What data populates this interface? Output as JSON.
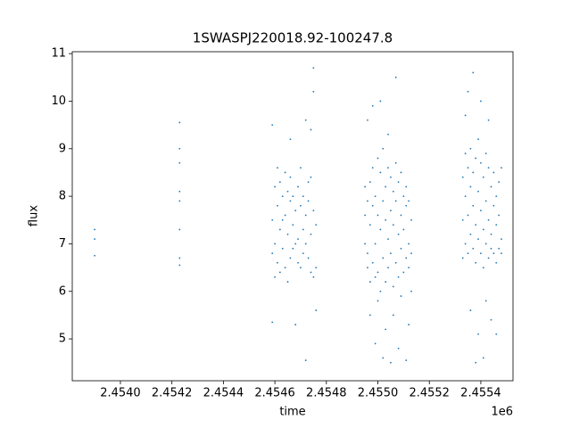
{
  "chart_data": {
    "type": "scatter",
    "title": "1SWASPJ220018.92-100247.8",
    "x_label": "time",
    "y_label": "flux",
    "x_offset_label": "1e6",
    "xlim": [
      2.453813,
      2.455525
    ],
    "ylim": [
      4.12,
      11.04
    ],
    "xticks": [
      {
        "value": 2.454,
        "label": "2.4540"
      },
      2.4542,
      2.4544,
      2.4546,
      2.4548,
      {
        "value": 2.455,
        "label": "2.4550"
      },
      2.4552,
      2.4554
    ],
    "yticks": [
      5,
      6,
      7,
      8,
      9,
      10,
      11
    ],
    "series": [
      {
        "color": "#1f77b4",
        "x": [
          2.4539,
          2.4539,
          2.4539,
          2.45423,
          2.45423,
          2.45423,
          2.45423,
          2.45423,
          2.45423,
          2.45423,
          2.45423,
          2.45459,
          2.45459,
          2.45459,
          2.45459,
          2.4546,
          2.4546,
          2.4546,
          2.45461,
          2.45461,
          2.45461,
          2.45462,
          2.45462,
          2.45462,
          2.45463,
          2.45463,
          2.45463,
          2.45464,
          2.45464,
          2.45464,
          2.45465,
          2.45465,
          2.45465,
          2.45466,
          2.45466,
          2.45466,
          2.45466,
          2.45467,
          2.45467,
          2.45467,
          2.45468,
          2.45468,
          2.45468,
          2.45469,
          2.45469,
          2.45469,
          2.4547,
          2.4547,
          2.4547,
          2.45471,
          2.45471,
          2.45471,
          2.45472,
          2.45472,
          2.45472,
          2.45472,
          2.45473,
          2.45473,
          2.45473,
          2.45474,
          2.45474,
          2.45474,
          2.45474,
          2.45475,
          2.45475,
          2.45475,
          2.45475,
          2.45476,
          2.45476,
          2.45476,
          2.45495,
          2.45495,
          2.45495,
          2.45496,
          2.45496,
          2.45496,
          2.45496,
          2.45497,
          2.45497,
          2.45497,
          2.45497,
          2.45498,
          2.45498,
          2.45498,
          2.45498,
          2.45499,
          2.45499,
          2.45499,
          2.45499,
          2.455,
          2.455,
          2.455,
          2.455,
          2.45501,
          2.45501,
          2.45501,
          2.45501,
          2.45502,
          2.45502,
          2.45502,
          2.45502,
          2.45503,
          2.45503,
          2.45503,
          2.45503,
          2.45504,
          2.45504,
          2.45504,
          2.45504,
          2.45505,
          2.45505,
          2.45505,
          2.45505,
          2.45506,
          2.45506,
          2.45506,
          2.45506,
          2.45507,
          2.45507,
          2.45507,
          2.45507,
          2.45508,
          2.45508,
          2.45508,
          2.45508,
          2.45509,
          2.45509,
          2.45509,
          2.45509,
          2.4551,
          2.4551,
          2.4551,
          2.45511,
          2.45511,
          2.45511,
          2.45511,
          2.45512,
          2.45512,
          2.45512,
          2.45512,
          2.45513,
          2.45513,
          2.45513,
          2.45533,
          2.45533,
          2.45533,
          2.45534,
          2.45534,
          2.45534,
          2.45534,
          2.45535,
          2.45535,
          2.45535,
          2.45535,
          2.45536,
          2.45536,
          2.45536,
          2.45536,
          2.45537,
          2.45537,
          2.45537,
          2.45537,
          2.45538,
          2.45538,
          2.45538,
          2.45538,
          2.45539,
          2.45539,
          2.45539,
          2.45539,
          2.4554,
          2.4554,
          2.4554,
          2.4554,
          2.45541,
          2.45541,
          2.45541,
          2.45541,
          2.45542,
          2.45542,
          2.45542,
          2.45542,
          2.45543,
          2.45543,
          2.45543,
          2.45543,
          2.45544,
          2.45544,
          2.45544,
          2.45544,
          2.45545,
          2.45545,
          2.45545,
          2.45546,
          2.45546,
          2.45546,
          2.45546,
          2.45547,
          2.45547,
          2.45547,
          2.45548,
          2.45548,
          2.45548
        ],
        "values": [
          6.75,
          7.1,
          7.3,
          6.55,
          6.7,
          7.3,
          7.9,
          8.1,
          8.7,
          9.0,
          9.55,
          7.5,
          6.8,
          9.5,
          5.35,
          7.0,
          8.2,
          6.3,
          7.8,
          6.6,
          8.6,
          7.3,
          6.4,
          8.3,
          8.0,
          6.9,
          7.5,
          7.6,
          6.5,
          8.5,
          7.2,
          8.1,
          6.2,
          7.9,
          6.7,
          8.4,
          9.2,
          7.4,
          6.9,
          8.0,
          7.7,
          7.0,
          5.3,
          7.1,
          8.2,
          6.6,
          7.8,
          6.5,
          8.6,
          7.3,
          8.0,
          6.8,
          7.6,
          7.0,
          4.55,
          9.6,
          7.9,
          6.7,
          8.3,
          7.2,
          8.4,
          6.4,
          9.4,
          7.7,
          10.7,
          10.2,
          6.3,
          7.4,
          6.5,
          5.6,
          8.2,
          7.6,
          7.0,
          6.8,
          7.9,
          6.5,
          9.6,
          7.4,
          8.3,
          6.2,
          5.5,
          7.8,
          6.6,
          8.6,
          9.9,
          7.0,
          8.0,
          6.3,
          4.9,
          7.6,
          8.8,
          6.4,
          5.8,
          7.3,
          8.5,
          6.0,
          10.0,
          7.9,
          6.7,
          9.0,
          4.6,
          7.5,
          8.2,
          6.2,
          5.2,
          7.1,
          8.6,
          6.5,
          9.3,
          7.7,
          6.8,
          8.4,
          4.5,
          7.4,
          8.1,
          6.1,
          5.5,
          7.9,
          6.6,
          8.7,
          10.5,
          7.2,
          8.3,
          6.3,
          4.8,
          7.6,
          6.9,
          8.5,
          5.9,
          7.3,
          8.0,
          6.4,
          7.8,
          6.7,
          8.2,
          4.55,
          7.0,
          7.9,
          6.5,
          5.3,
          7.5,
          6.8,
          6.0,
          7.5,
          8.4,
          6.7,
          8.0,
          7.0,
          8.9,
          9.7,
          7.6,
          8.6,
          6.8,
          10.2,
          8.2,
          7.2,
          9.0,
          5.6,
          7.8,
          6.9,
          8.5,
          10.6,
          7.4,
          8.8,
          6.6,
          4.5,
          8.1,
          7.1,
          9.2,
          5.1,
          7.7,
          6.8,
          8.7,
          10.0,
          7.3,
          8.4,
          6.5,
          4.6,
          7.9,
          7.0,
          8.9,
          5.8,
          7.5,
          8.6,
          6.7,
          9.6,
          7.2,
          8.2,
          6.9,
          5.4,
          7.8,
          6.8,
          8.5,
          7.4,
          8.0,
          6.6,
          5.1,
          7.6,
          6.9,
          8.3,
          7.1,
          8.6,
          6.8
        ]
      }
    ]
  }
}
